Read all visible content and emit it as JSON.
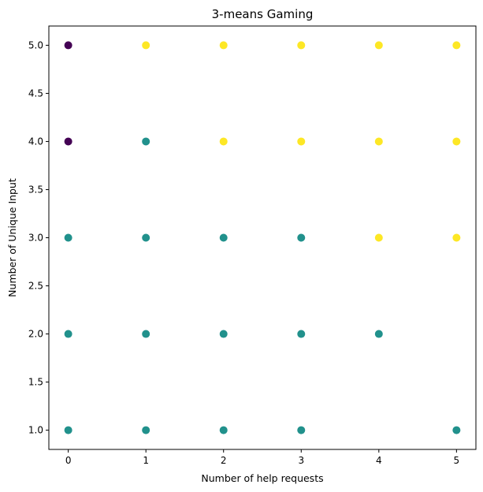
{
  "chart_data": {
    "type": "scatter",
    "title": "3-means Gaming",
    "xlabel": "Number of help requests",
    "ylabel": "Number of Unique Input",
    "xlim": [
      -0.25,
      5.25
    ],
    "ylim": [
      0.8,
      5.2
    ],
    "xticks": [
      0,
      1,
      2,
      3,
      4,
      5
    ],
    "xtick_labels": [
      "0",
      "1",
      "2",
      "3",
      "4",
      "5"
    ],
    "yticks": [
      1.0,
      1.5,
      2.0,
      2.5,
      3.0,
      3.5,
      4.0,
      4.5,
      5.0
    ],
    "ytick_labels": [
      "1.0",
      "1.5",
      "2.0",
      "2.5",
      "3.0",
      "3.5",
      "4.0",
      "4.5",
      "5.0"
    ],
    "grid": false,
    "legend": "none",
    "series": [
      {
        "cluster": 0,
        "color": "#440154",
        "points": [
          {
            "x": 0,
            "y": 5
          },
          {
            "x": 0,
            "y": 4
          }
        ]
      },
      {
        "cluster": 1,
        "color": "#21918c",
        "points": [
          {
            "x": 0,
            "y": 3
          },
          {
            "x": 0,
            "y": 2
          },
          {
            "x": 0,
            "y": 1
          },
          {
            "x": 1,
            "y": 4
          },
          {
            "x": 1,
            "y": 3
          },
          {
            "x": 1,
            "y": 2
          },
          {
            "x": 1,
            "y": 1
          },
          {
            "x": 2,
            "y": 3
          },
          {
            "x": 2,
            "y": 2
          },
          {
            "x": 2,
            "y": 1
          },
          {
            "x": 3,
            "y": 3
          },
          {
            "x": 3,
            "y": 2
          },
          {
            "x": 3,
            "y": 1
          },
          {
            "x": 4,
            "y": 2
          },
          {
            "x": 5,
            "y": 1
          }
        ]
      },
      {
        "cluster": 2,
        "color": "#fde725",
        "points": [
          {
            "x": 1,
            "y": 5
          },
          {
            "x": 2,
            "y": 5
          },
          {
            "x": 2,
            "y": 4
          },
          {
            "x": 3,
            "y": 5
          },
          {
            "x": 3,
            "y": 4
          },
          {
            "x": 4,
            "y": 5
          },
          {
            "x": 4,
            "y": 4
          },
          {
            "x": 4,
            "y": 3
          },
          {
            "x": 5,
            "y": 5
          },
          {
            "x": 5,
            "y": 4
          },
          {
            "x": 5,
            "y": 3
          }
        ]
      }
    ]
  }
}
